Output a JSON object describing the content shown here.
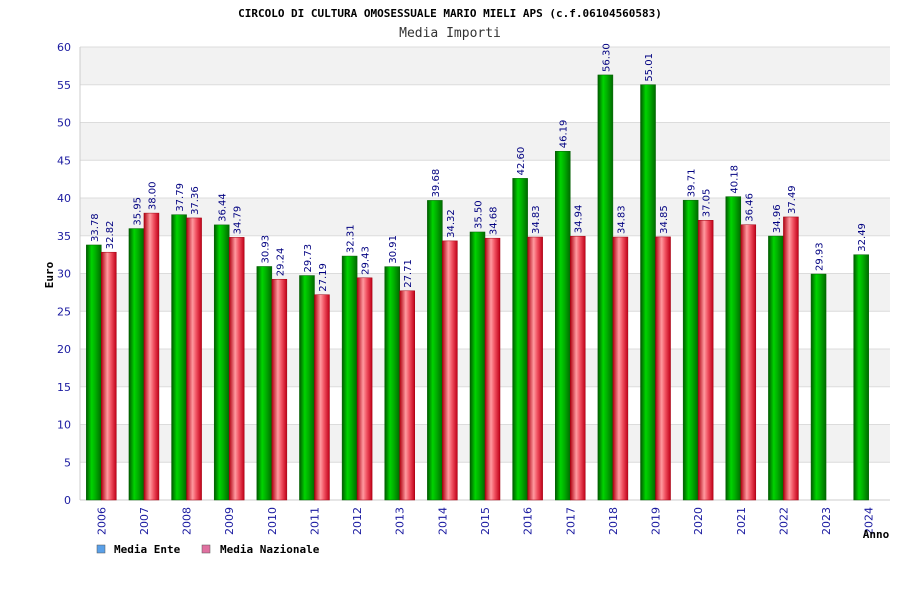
{
  "chart_data": {
    "type": "bar",
    "title": "CIRCOLO DI CULTURA OMOSESSUALE MARIO MIELI APS (c.f.06104560583)",
    "subtitle": "Media Importi",
    "ylabel": "Euro",
    "xlabel": "Anno",
    "ylim": [
      0,
      60
    ],
    "yticks": [
      0,
      5,
      10,
      15,
      20,
      25,
      30,
      35,
      40,
      45,
      50,
      55,
      60
    ],
    "grid": true,
    "legend_position": "bottom-left",
    "categories": [
      "2006",
      "2007",
      "2008",
      "2009",
      "2010",
      "2011",
      "2012",
      "2013",
      "2014",
      "2015",
      "2016",
      "2017",
      "2018",
      "2019",
      "2020",
      "2021",
      "2022",
      "2023",
      "2024"
    ],
    "series": [
      {
        "name": "Media Ente",
        "color": "#00a000",
        "legend_color": "#5aa0e8",
        "values": [
          33.78,
          35.95,
          37.79,
          36.44,
          30.93,
          29.73,
          32.31,
          30.91,
          39.68,
          35.5,
          42.6,
          46.19,
          56.3,
          55.01,
          39.71,
          40.18,
          34.96,
          29.93,
          32.49
        ],
        "labels": [
          "33.78",
          "35.95",
          "37.79",
          "36.44",
          "30.93",
          "29.73",
          "32.31",
          "30.91",
          "39.68",
          "35.50",
          "42.60",
          "46.19",
          "56.30",
          "55.01",
          "39.71",
          "40.18",
          "34.96",
          "29.93",
          "32.49"
        ]
      },
      {
        "name": "Media Nazionale",
        "color": "#e02030",
        "legend_color": "#e070a0",
        "values": [
          32.82,
          38.0,
          37.36,
          34.79,
          29.24,
          27.19,
          29.43,
          27.71,
          34.32,
          34.68,
          34.83,
          34.94,
          34.83,
          34.85,
          37.05,
          36.46,
          37.49,
          null,
          null
        ],
        "labels": [
          "32.82",
          "38.00",
          "37.36",
          "34.79",
          "29.24",
          "27.19",
          "29.43",
          "27.71",
          "34.32",
          "34.68",
          "34.83",
          "34.94",
          "34.83",
          "34.85",
          "37.05",
          "36.46",
          "37.49",
          null,
          null
        ]
      }
    ]
  }
}
